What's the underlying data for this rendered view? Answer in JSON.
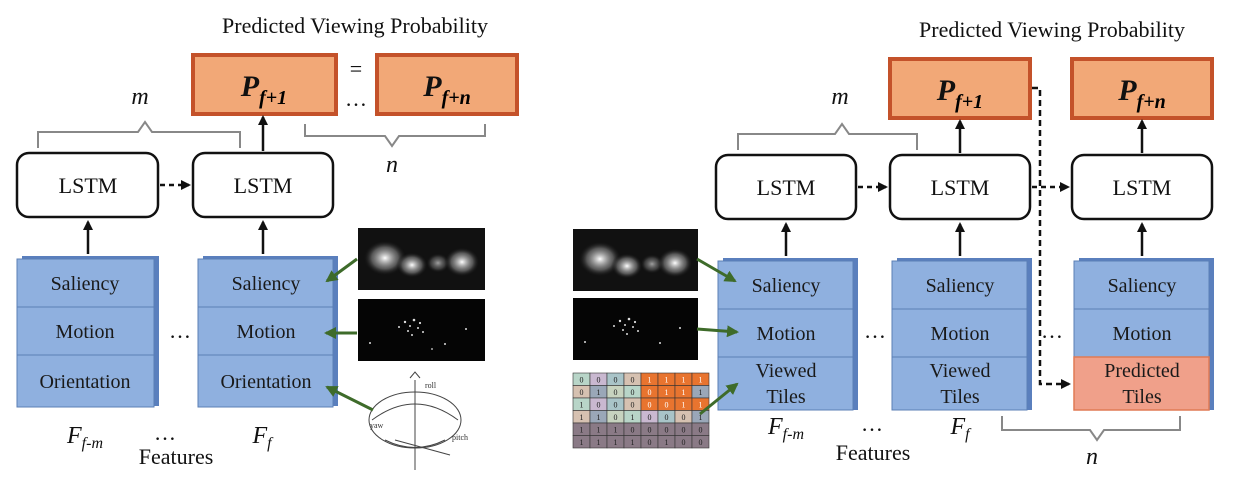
{
  "left": {
    "title": "Predicted Viewing Probability",
    "prob_1": {
      "main": "P",
      "sub": "f+1"
    },
    "prob_n": {
      "main": "P",
      "sub": "f+n"
    },
    "equals": "=",
    "ellipsis": "…",
    "m_label": "m",
    "n_label": "n",
    "lstm_label": "LSTM",
    "features": [
      "Saliency",
      "Motion",
      "Orientation"
    ],
    "stack_1_label": {
      "main": "F",
      "sub": "f-m"
    },
    "stack_2_label": {
      "main": "F",
      "sub": "f"
    },
    "features_label": "Features"
  },
  "right": {
    "title": "Predicted Viewing Probability",
    "prob_1": {
      "main": "P",
      "sub": "f+1"
    },
    "prob_n": {
      "main": "P",
      "sub": "f+n"
    },
    "m_label": "m",
    "n_label": "n",
    "lstm_label": "LSTM",
    "features": [
      "Saliency",
      "Motion"
    ],
    "viewed_tiles": [
      "Viewed",
      "Tiles"
    ],
    "predicted_tiles": [
      "Predicted",
      "Tiles"
    ],
    "stack_1_label": {
      "main": "F",
      "sub": "f-m"
    },
    "stack_2_label": {
      "main": "F",
      "sub": "f"
    },
    "features_label": "Features",
    "ellipsis": "…",
    "tile_grid_values": [
      "0",
      "0",
      "0",
      "0",
      "1",
      "1",
      "1",
      "1",
      "0",
      "1",
      "0",
      "0",
      "0",
      "1",
      "1",
      "1",
      "1",
      "0"
    ]
  },
  "colors": {
    "feature_fill": "#8fb0df",
    "feature_stroke": "#5b7fb6",
    "prob_fill": "#f2a877",
    "prob_stroke": "#c4522a",
    "predicted_fill": "#f0a08a",
    "arrow_green": "#3e6b2a"
  }
}
